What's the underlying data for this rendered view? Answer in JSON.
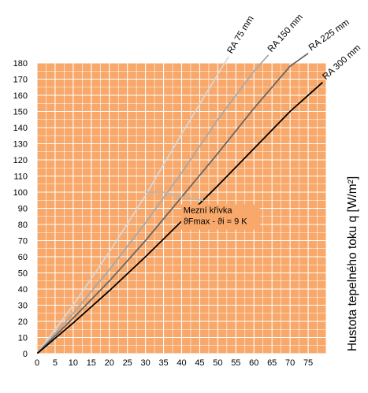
{
  "chart_data": {
    "type": "line",
    "title": "",
    "xlabel": "",
    "ylabel": "Hustota tepelného toku q [W/m²]",
    "xlim": [
      0,
      80
    ],
    "ylim": [
      0,
      180
    ],
    "xticks": [
      0,
      5,
      10,
      15,
      20,
      25,
      30,
      35,
      40,
      45,
      50,
      55,
      60,
      65,
      70,
      75
    ],
    "yticks": [
      0,
      10,
      20,
      30,
      40,
      50,
      60,
      70,
      80,
      90,
      100,
      110,
      120,
      130,
      140,
      150,
      160,
      170,
      180
    ],
    "grid": true,
    "background_color": "#F7A86A",
    "grid_color": "#FFFFFF",
    "series": [
      {
        "name": "RA 75 mm",
        "color": "#D8D8D8",
        "width": 1.8,
        "points": [
          [
            0,
            0
          ],
          [
            10,
            30
          ],
          [
            20,
            63
          ],
          [
            30,
            98
          ],
          [
            40,
            136
          ],
          [
            50,
            173
          ],
          [
            53,
            184
          ]
        ]
      },
      {
        "name": "RA 150 mm",
        "color": "#A8A8A8",
        "width": 1.8,
        "points": [
          [
            0,
            0
          ],
          [
            10,
            25
          ],
          [
            20,
            52
          ],
          [
            30,
            81
          ],
          [
            40,
            112
          ],
          [
            50,
            145
          ],
          [
            60,
            175
          ],
          [
            64,
            185
          ]
        ]
      },
      {
        "name": "RA 225 mm",
        "color": "#666666",
        "width": 1.8,
        "points": [
          [
            0,
            0
          ],
          [
            10,
            22
          ],
          [
            20,
            45
          ],
          [
            30,
            70
          ],
          [
            40,
            97
          ],
          [
            50,
            124
          ],
          [
            60,
            152
          ],
          [
            70,
            178
          ],
          [
            75,
            186
          ]
        ]
      },
      {
        "name": "RA 300 mm",
        "color": "#000000",
        "width": 1.8,
        "points": [
          [
            0,
            0
          ],
          [
            10,
            19
          ],
          [
            20,
            39
          ],
          [
            30,
            60
          ],
          [
            40,
            82
          ],
          [
            50,
            104
          ],
          [
            60,
            127
          ],
          [
            70,
            150
          ],
          [
            79,
            168
          ]
        ]
      }
    ],
    "limit_curve": {
      "color": "#B8B8B8",
      "points": [
        [
          30,
          100
        ],
        [
          35,
          100
        ],
        [
          40,
          97
        ],
        [
          46,
          95
        ]
      ],
      "label_line1": "Mezní křivka",
      "label_line2": "ϑFmax - ϑi = 9 K"
    }
  }
}
